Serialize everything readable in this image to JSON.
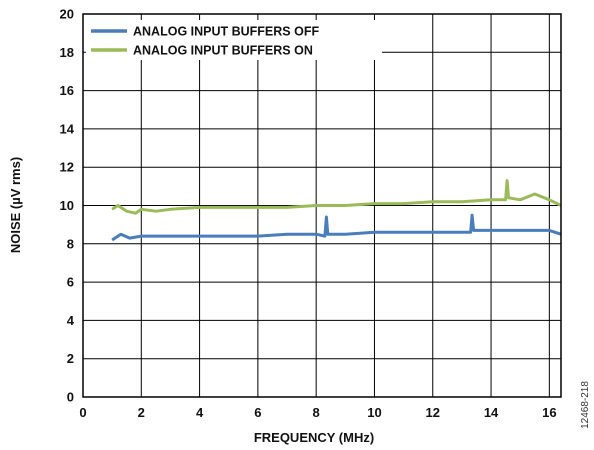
{
  "chart_data": {
    "type": "line",
    "xlabel": "FREQUENCY (MHz)",
    "ylabel": "NOISE (µV rms)",
    "xlim": [
      0,
      16.4
    ],
    "ylim": [
      0,
      20
    ],
    "x_ticks": [
      0,
      2,
      4,
      6,
      8,
      10,
      12,
      14,
      16
    ],
    "y_ticks": [
      0,
      2,
      4,
      6,
      8,
      10,
      12,
      14,
      16,
      18,
      20
    ],
    "grid": true,
    "legend_position": "top-left",
    "series": [
      {
        "name": "ANALOG INPUT BUFFERS OFF",
        "color": "#4a7ebb",
        "x": [
          1.0,
          1.3,
          1.6,
          2.0,
          3.0,
          4.0,
          5.0,
          6.0,
          7.0,
          8.0,
          8.3,
          8.35,
          8.4,
          9.0,
          10.0,
          11.0,
          12.0,
          13.0,
          13.3,
          13.35,
          13.4,
          14.0,
          15.0,
          16.0,
          16.4
        ],
        "values": [
          8.2,
          8.5,
          8.3,
          8.4,
          8.4,
          8.4,
          8.4,
          8.4,
          8.5,
          8.5,
          8.4,
          9.4,
          8.5,
          8.5,
          8.6,
          8.6,
          8.6,
          8.6,
          8.6,
          9.5,
          8.7,
          8.7,
          8.7,
          8.7,
          8.5
        ]
      },
      {
        "name": "ANALOG INPUT BUFFERS ON",
        "color": "#9bbb59",
        "x": [
          1.0,
          1.2,
          1.5,
          1.8,
          2.0,
          2.5,
          3.0,
          4.0,
          5.0,
          6.0,
          7.0,
          8.0,
          9.0,
          10.0,
          11.0,
          12.0,
          13.0,
          14.0,
          14.5,
          14.55,
          14.6,
          15.0,
          15.5,
          16.0,
          16.4
        ],
        "values": [
          9.8,
          10.0,
          9.7,
          9.6,
          9.8,
          9.7,
          9.8,
          9.9,
          9.9,
          9.9,
          9.9,
          10.0,
          10.0,
          10.1,
          10.1,
          10.2,
          10.2,
          10.3,
          10.3,
          11.3,
          10.4,
          10.3,
          10.6,
          10.3,
          10.0
        ]
      }
    ]
  },
  "figure_id": "12468-218"
}
